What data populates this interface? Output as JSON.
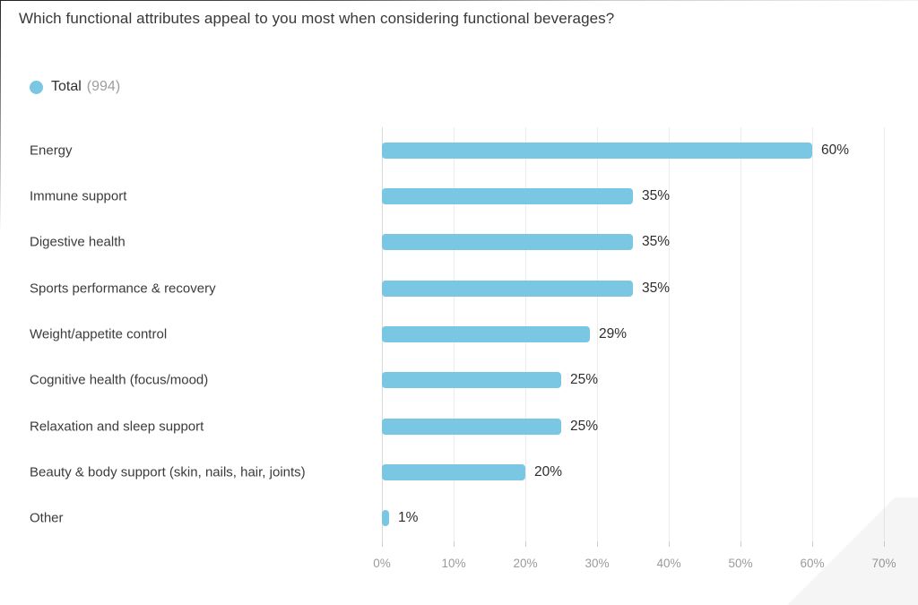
{
  "header": {
    "title": "Which functional attributes appeal to you most when considering functional beverages?"
  },
  "legend": {
    "label": "Total",
    "count": "(994)",
    "swatch_color": "#79C7E3"
  },
  "chart_data": {
    "type": "bar",
    "orientation": "horizontal",
    "title": "Which functional attributes appeal to you most when considering functional beverages?",
    "categories": [
      "Energy",
      "Immune support",
      "Digestive health",
      "Sports performance & recovery",
      "Weight/appetite control",
      "Cognitive health (focus/mood)",
      "Relaxation and sleep support",
      "Beauty & body support (skin, nails, hair, joints)",
      "Other"
    ],
    "series": [
      {
        "name": "Total",
        "n": 994,
        "values": [
          60,
          35,
          35,
          35,
          29,
          25,
          25,
          20,
          1
        ]
      }
    ],
    "value_labels": [
      "60%",
      "35%",
      "35%",
      "35%",
      "29%",
      "25%",
      "25%",
      "20%",
      "1%"
    ],
    "xlabel": "",
    "ylabel": "",
    "xlim": [
      0,
      70
    ],
    "x_tick_labels": [
      "0%",
      "10%",
      "20%",
      "30%",
      "40%",
      "50%",
      "60%",
      "70%"
    ],
    "grid": "vertical-only",
    "legend_position": "top-left",
    "bar_color": "#79C7E3",
    "category_label_color": "#3b3b3b",
    "value_label_color": "#2e2e2e",
    "axis_label_color": "#9b9b9b"
  }
}
